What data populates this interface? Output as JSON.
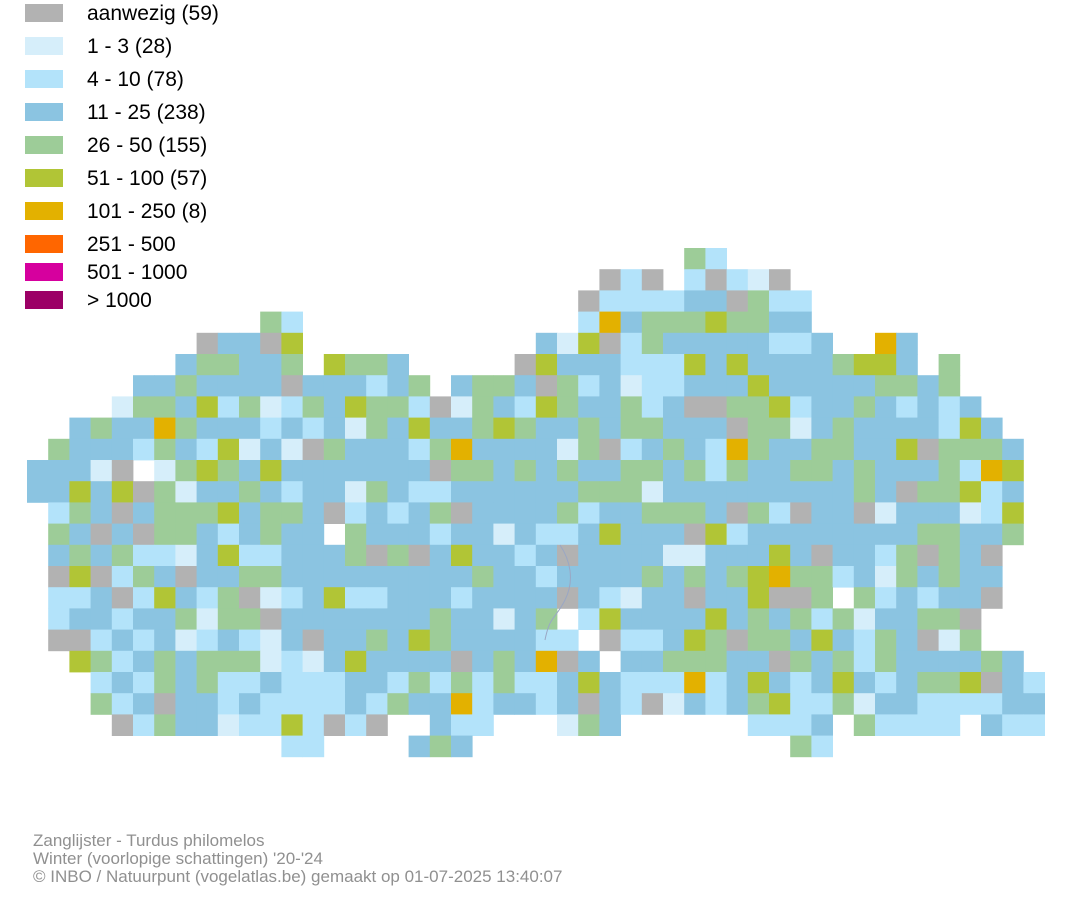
{
  "legend": {
    "items": [
      {
        "label": "aanwezig (59)",
        "color": "#b2b2b2"
      },
      {
        "label": "1 - 3 (28)",
        "color": "#d6eefa"
      },
      {
        "label": "4 - 10 (78)",
        "color": "#b3e3fa"
      },
      {
        "label": "11 - 25 (238)",
        "color": "#8bc4e1"
      },
      {
        "label": "26 - 50 (155)",
        "color": "#9dcc98"
      },
      {
        "label": "51 - 100 (57)",
        "color": "#b1c536"
      },
      {
        "label": "101 - 250 (8)",
        "color": "#e3b100"
      },
      {
        "label": "251 - 500",
        "color": "#ff6600"
      },
      {
        "label": "501 - 1000",
        "color": "#d6009e"
      },
      {
        "label": "> 1000",
        "color": "#9c0066"
      }
    ]
  },
  "footer": {
    "line1": "Zanglijster - Turdus philomelos",
    "line2": "Winter (voorlopige schattingen) '20-'24",
    "line3": "© INBO / Natuurpunt (vogelatlas.be) gemaakt op 01-07-2025 13:40:07"
  },
  "map": {
    "palette": [
      "#b2b2b2",
      "#d6eefa",
      "#b3e3fa",
      "#8bc4e1",
      "#9dcc98",
      "#b1c536",
      "#e3b100"
    ],
    "default_class": 3
  }
}
